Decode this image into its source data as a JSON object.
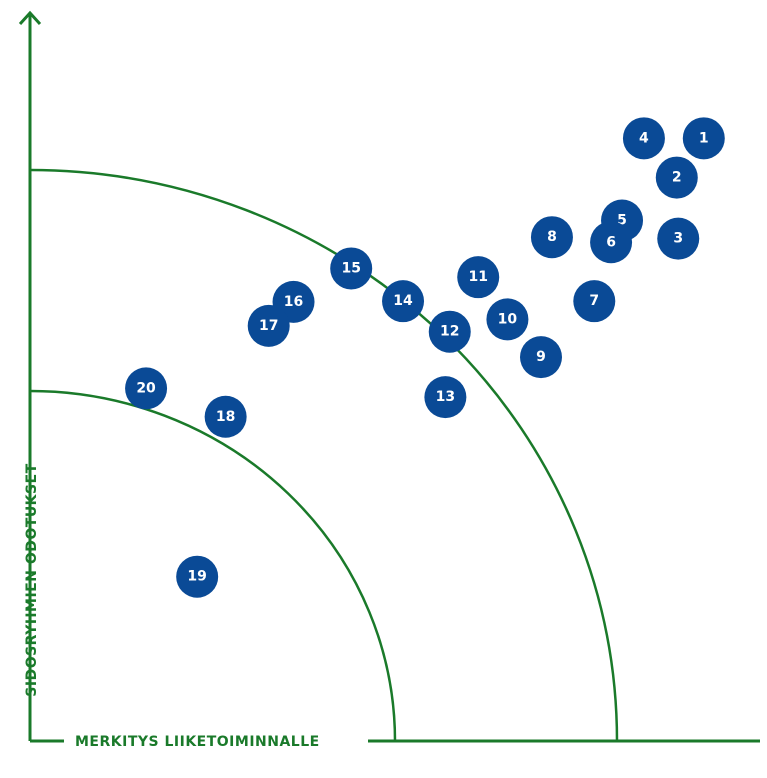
{
  "chart_data": {
    "type": "scatter",
    "xlabel": "MERKITYS LIIKETOIMINNALLE",
    "ylabel": "SIDOSRYHMIEN ODOTUKSET",
    "grid": false,
    "legend": "none",
    "colors": {
      "axis": "#1a7a2a",
      "bubble": "#0a4a96",
      "label": "#ffffff"
    },
    "points": [
      {
        "label": "1",
        "x": 92.3,
        "y": 82.9
      },
      {
        "label": "2",
        "x": 88.6,
        "y": 77.5
      },
      {
        "label": "3",
        "x": 88.8,
        "y": 69.1
      },
      {
        "label": "4",
        "x": 84.1,
        "y": 82.9
      },
      {
        "label": "5",
        "x": 81.1,
        "y": 71.6
      },
      {
        "label": "6",
        "x": 79.6,
        "y": 68.6
      },
      {
        "label": "7",
        "x": 77.3,
        "y": 60.5
      },
      {
        "label": "8",
        "x": 71.5,
        "y": 69.3
      },
      {
        "label": "9",
        "x": 70.0,
        "y": 52.8
      },
      {
        "label": "10",
        "x": 65.4,
        "y": 58.0
      },
      {
        "label": "11",
        "x": 61.4,
        "y": 63.8
      },
      {
        "label": "12",
        "x": 57.5,
        "y": 56.3
      },
      {
        "label": "13",
        "x": 56.9,
        "y": 47.3
      },
      {
        "label": "14",
        "x": 51.1,
        "y": 60.5
      },
      {
        "label": "15",
        "x": 44.0,
        "y": 65.0
      },
      {
        "label": "16",
        "x": 36.1,
        "y": 60.4
      },
      {
        "label": "17",
        "x": 32.7,
        "y": 57.1
      },
      {
        "label": "18",
        "x": 26.8,
        "y": 44.6
      },
      {
        "label": "19",
        "x": 22.9,
        "y": 22.6
      },
      {
        "label": "20",
        "x": 15.9,
        "y": 48.5
      }
    ]
  }
}
